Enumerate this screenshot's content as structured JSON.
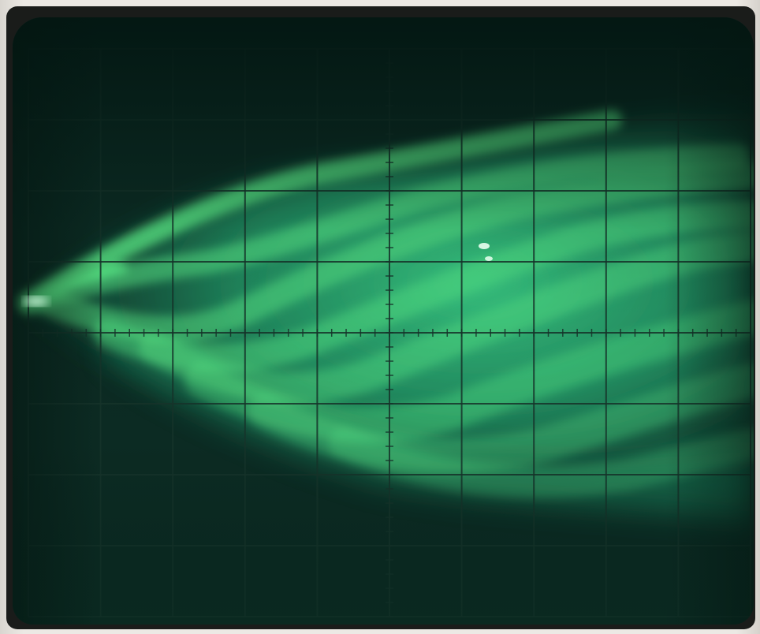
{
  "photo": {
    "subject": "oscilloscope-crt-screen",
    "trace_color": "#5cf08a",
    "phosphor_dark": "#0b2a22",
    "phosphor_lit": "#2fae73",
    "graticule_color": "#16342a",
    "bezel_color": "#1a1c1a"
  },
  "graticule": {
    "divisions_x": 10,
    "divisions_y": 8,
    "minor_ticks_per_division": 5
  }
}
